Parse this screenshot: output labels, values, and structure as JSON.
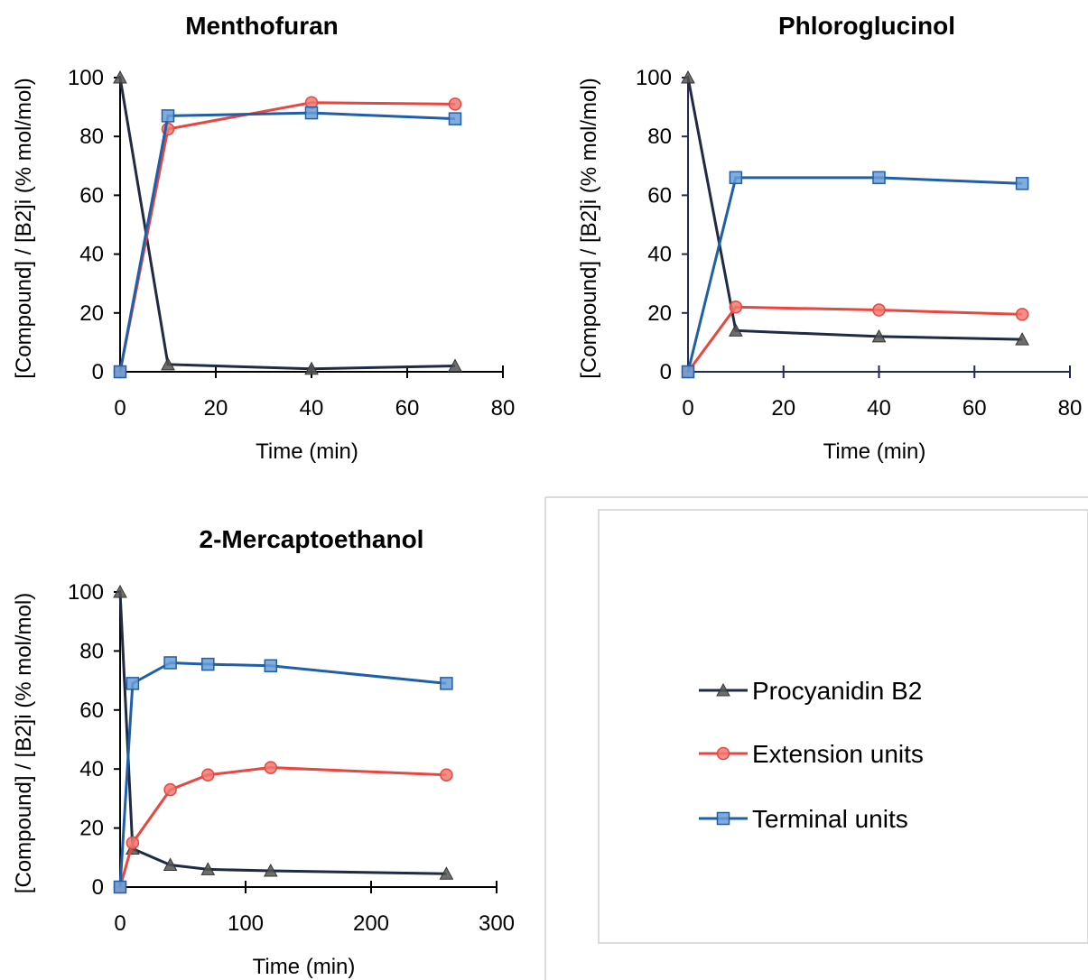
{
  "colors": {
    "procyanidin": "#1f2a44",
    "extension": "#e8463f",
    "terminal": "#1f5fa8",
    "terminal_marker": "#6a9fd8",
    "extension_marker": "#f07a72",
    "procyanidin_marker": "#555555"
  },
  "legend": {
    "items": [
      {
        "label": "Procyanidin B2",
        "marker": "triangle"
      },
      {
        "label": "Extension units",
        "marker": "circle"
      },
      {
        "label": "Terminal units",
        "marker": "square"
      }
    ]
  },
  "chart_data": [
    {
      "type": "line",
      "title": "Menthofuran",
      "xlabel": "Time (min)",
      "ylabel": "[Compound] / [B2]i (% mol/mol)",
      "xlim": [
        0,
        80
      ],
      "ylim": [
        0,
        100
      ],
      "xticks": [
        "0",
        "20",
        "40",
        "60",
        "80"
      ],
      "yticks": [
        "0",
        "20",
        "40",
        "60",
        "80",
        "100"
      ],
      "series": [
        {
          "name": "Procyanidin B2",
          "x": [
            0,
            10,
            40,
            70
          ],
          "y": [
            100,
            2.5,
            1,
            2
          ]
        },
        {
          "name": "Extension units",
          "x": [
            0,
            10,
            40,
            70
          ],
          "y": [
            0,
            82.5,
            91.5,
            91
          ]
        },
        {
          "name": "Terminal units",
          "x": [
            0,
            10,
            40,
            70
          ],
          "y": [
            0,
            87,
            88,
            86
          ]
        }
      ]
    },
    {
      "type": "line",
      "title": "Phloroglucinol",
      "xlabel": "Time (min)",
      "ylabel": "[Compound] / [B2]i (% mol/mol)",
      "xlim": [
        0,
        80
      ],
      "ylim": [
        0,
        100
      ],
      "xticks": [
        "0",
        "20",
        "40",
        "60",
        "80"
      ],
      "yticks": [
        "0",
        "20",
        "40",
        "60",
        "80",
        "100"
      ],
      "series": [
        {
          "name": "Procyanidin B2",
          "x": [
            0,
            10,
            40,
            70
          ],
          "y": [
            100,
            14,
            12,
            11
          ]
        },
        {
          "name": "Extension units",
          "x": [
            0,
            10,
            40,
            70
          ],
          "y": [
            0,
            22,
            21,
            19.5
          ]
        },
        {
          "name": "Terminal units",
          "x": [
            0,
            10,
            40,
            70
          ],
          "y": [
            0,
            66,
            66,
            64
          ]
        }
      ]
    },
    {
      "type": "line",
      "title": "2-Mercaptoethanol",
      "xlabel": "Time (min)",
      "ylabel": "[Compound] / [B2]i (% mol/mol)",
      "xlim": [
        0,
        300
      ],
      "ylim": [
        0,
        100
      ],
      "xticks": [
        "0",
        "100",
        "200",
        "300"
      ],
      "yticks": [
        "0",
        "20",
        "40",
        "60",
        "80",
        "100"
      ],
      "series": [
        {
          "name": "Procyanidin B2",
          "x": [
            0,
            10,
            40,
            70,
            120,
            260
          ],
          "y": [
            100,
            13,
            7.5,
            6,
            5.5,
            4.5
          ]
        },
        {
          "name": "Extension units",
          "x": [
            0,
            10,
            40,
            70,
            120,
            260
          ],
          "y": [
            0,
            15,
            33,
            38,
            40.5,
            38
          ]
        },
        {
          "name": "Terminal units",
          "x": [
            0,
            10,
            40,
            70,
            120,
            260
          ],
          "y": [
            0,
            69,
            76,
            75.5,
            75,
            69
          ]
        }
      ]
    }
  ]
}
